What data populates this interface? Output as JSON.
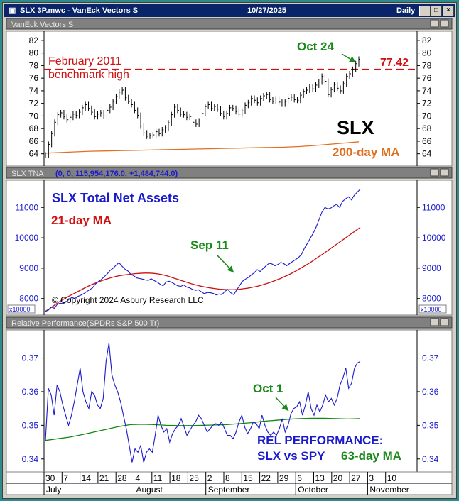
{
  "window": {
    "title": "SLX 3P.mwc - VanEck Vectors S",
    "date": "10/27/2025",
    "interval": "Daily",
    "btn_min": "_",
    "btn_max": "□",
    "btn_close": "×"
  },
  "chart_data": [
    {
      "type": "line",
      "panel_title": "VanEck Vectors S",
      "ylim": [
        62.5,
        83
      ],
      "yticks": [
        64,
        66,
        68,
        70,
        72,
        74,
        76,
        78,
        80,
        82
      ],
      "price": [
        63.8,
        65.5,
        67.2,
        69.0,
        70.2,
        70.5,
        69.9,
        69.4,
        69.8,
        70.3,
        70.1,
        70.6,
        71.3,
        71.8,
        71.2,
        70.6,
        69.9,
        70.3,
        70.5,
        70.0,
        70.9,
        71.4,
        72.3,
        73.1,
        73.8,
        74.1,
        72.9,
        72.3,
        71.8,
        70.9,
        70.1,
        68.4,
        67.3,
        66.8,
        66.9,
        67.0,
        67.5,
        67.2,
        67.8,
        68.1,
        68.9,
        70.2,
        71.4,
        70.9,
        70.3,
        70.2,
        69.8,
        69.9,
        69.0,
        68.7,
        69.2,
        70.4,
        71.5,
        71.8,
        71.2,
        71.5,
        71.1,
        70.4,
        69.9,
        70.4,
        71.3,
        71.2,
        70.7,
        70.3,
        70.8,
        71.7,
        72.1,
        72.8,
        72.5,
        72.1,
        72.8,
        73.2,
        73.4,
        72.6,
        72.3,
        72.7,
        72.2,
        71.9,
        72.3,
        72.8,
        73.0,
        72.6,
        72.5,
        73.3,
        73.9,
        74.1,
        74.6,
        74.3,
        74.9,
        75.4,
        76.3,
        75.5,
        73.4,
        74.2,
        75.0,
        74.4,
        74.0,
        75.1,
        76.3,
        76.7,
        77.4,
        78.3,
        79.0
      ],
      "ma200": [
        64.1,
        64.2,
        64.3,
        64.4,
        64.45,
        64.5,
        64.55,
        64.6,
        64.65,
        64.7,
        64.75,
        64.8,
        64.85,
        64.9,
        64.95,
        65.0,
        65.05,
        65.15,
        65.3,
        65.5,
        65.7,
        65.9
      ],
      "benchmark": 77.42,
      "benchmark_label": "77.42",
      "annotations": {
        "bench_l1": "February 2011",
        "bench_l2": "benchmark high",
        "ticker": "SLX",
        "ma_label": "200-day MA",
        "oct24": "Oct 24"
      }
    },
    {
      "type": "line",
      "panel_title": "SLX TNA",
      "panel_params": "(0, 0, 115,954,176.0, +1,484,744.0)",
      "ylim": [
        7550,
        11800
      ],
      "yticks": [
        8000,
        9000,
        10000,
        11000
      ],
      "scale_label": "x10000",
      "tna": [
        7580,
        7620,
        7720,
        7680,
        7810,
        7850,
        7830,
        7890,
        7970,
        8040,
        8000,
        8070,
        8110,
        8160,
        8230,
        8290,
        8350,
        8480,
        8560,
        8630,
        8720,
        8810,
        8930,
        9000,
        9100,
        9180,
        9070,
        8970,
        8910,
        8800,
        8750,
        8680,
        8660,
        8640,
        8610,
        8600,
        8650,
        8590,
        8540,
        8470,
        8420,
        8540,
        8570,
        8530,
        8470,
        8420,
        8400,
        8450,
        8380,
        8350,
        8300,
        8270,
        8290,
        8220,
        8160,
        8200,
        8190,
        8170,
        8120,
        8150,
        8130,
        8240,
        8300,
        8190,
        8130,
        8280,
        8430,
        8570,
        8640,
        8700,
        8780,
        8850,
        8950,
        8890,
        8990,
        9080,
        9160,
        9140,
        9080,
        9120,
        9190,
        9150,
        9080,
        9150,
        9220,
        9280,
        9350,
        9450,
        9650,
        9810,
        9980,
        10150,
        10350,
        10600,
        10850,
        11000,
        10950,
        10980,
        11050,
        11100,
        11000,
        11200,
        11280,
        11350,
        11250,
        11400,
        11500,
        11600
      ],
      "ma21": [
        7580,
        7680,
        7790,
        7900,
        7990,
        8080,
        8160,
        8240,
        8320,
        8400,
        8470,
        8530,
        8590,
        8640,
        8690,
        8730,
        8760,
        8780,
        8800,
        8820,
        8830,
        8840,
        8840,
        8830,
        8810,
        8780,
        8740,
        8690,
        8640,
        8590,
        8540,
        8490,
        8450,
        8410,
        8380,
        8350,
        8330,
        8310,
        8300,
        8290,
        8290,
        8300,
        8320,
        8340,
        8370,
        8400,
        8440,
        8490,
        8540,
        8600,
        8660,
        8730,
        8800,
        8880,
        8970,
        9060,
        9150,
        9250,
        9360,
        9460,
        9570,
        9680,
        9790,
        9900,
        10010,
        10120,
        10230,
        10340
      ],
      "annotations": {
        "title": "SLX Total Net Assets",
        "ma_label": "21-day MA",
        "sep11": "Sep 11",
        "copyright": "© Copyright 2024 Asbury Research LLC"
      }
    },
    {
      "type": "line",
      "panel_title": "Relative Performance(SPDRs S&P 500 Tr)",
      "ylim": [
        0.337,
        0.3775
      ],
      "yticks": [
        0.34,
        0.35,
        0.36,
        0.37
      ],
      "rel": [
        0.3455,
        0.361,
        0.359,
        0.353,
        0.362,
        0.36,
        0.356,
        0.353,
        0.35,
        0.353,
        0.357,
        0.362,
        0.367,
        0.36,
        0.357,
        0.355,
        0.36,
        0.359,
        0.356,
        0.355,
        0.358,
        0.369,
        0.3745,
        0.365,
        0.362,
        0.36,
        0.357,
        0.353,
        0.349,
        0.344,
        0.339,
        0.343,
        0.342,
        0.344,
        0.339,
        0.342,
        0.343,
        0.342,
        0.347,
        0.353,
        0.35,
        0.348,
        0.349,
        0.345,
        0.3475,
        0.349,
        0.35,
        0.352,
        0.3495,
        0.347,
        0.3485,
        0.35,
        0.351,
        0.353,
        0.352,
        0.35,
        0.348,
        0.349,
        0.35,
        0.3505,
        0.35,
        0.351,
        0.349,
        0.347,
        0.347,
        0.346,
        0.348,
        0.351,
        0.353,
        0.3495,
        0.3475,
        0.349,
        0.351,
        0.3505,
        0.349,
        0.353,
        0.35,
        0.348,
        0.347,
        0.348,
        0.347,
        0.349,
        0.352,
        0.348,
        0.35,
        0.3535,
        0.355,
        0.3555,
        0.357,
        0.353,
        0.356,
        0.36,
        0.355,
        0.353,
        0.356,
        0.354,
        0.356,
        0.359,
        0.357,
        0.358,
        0.356,
        0.358,
        0.362,
        0.364,
        0.367,
        0.361,
        0.3625,
        0.367,
        0.3685,
        0.369
      ],
      "ma63": [
        0.3455,
        0.346,
        0.3465,
        0.3472,
        0.348,
        0.3488,
        0.3496,
        0.3502,
        0.3503,
        0.3502,
        0.35,
        0.3499,
        0.3499,
        0.35,
        0.3501,
        0.3502,
        0.3505,
        0.3508,
        0.3512,
        0.3515,
        0.3518,
        0.352,
        0.3521,
        0.3521,
        0.352,
        0.3519,
        0.352
      ],
      "annotations": {
        "oct1": "Oct 1",
        "rel_l1": "REL PERFORMANCE:",
        "rel_l2": "SLX vs SPY",
        "ma_label": "63-day MA"
      }
    }
  ],
  "xaxis": {
    "days": [
      "30",
      "7",
      "14",
      "21",
      "28",
      "4",
      "11",
      "18",
      "25",
      "2",
      "8",
      "15",
      "22",
      "29",
      "6",
      "13",
      "20",
      "27",
      "3",
      "10"
    ],
    "months": [
      "July",
      "August",
      "September",
      "October",
      "November"
    ]
  },
  "colors": {
    "price_bar": "#000000",
    "ma200": "#e07020",
    "benchmark": "#d01010",
    "tna": "#1a1acc",
    "ma21": "#cc1111",
    "rel": "#1a1acc",
    "ma63": "#118811",
    "green_annot": "#1a8a1a",
    "blue_annot": "#1a1acc",
    "red_annot": "#d01010",
    "orange_annot": "#e07020"
  }
}
